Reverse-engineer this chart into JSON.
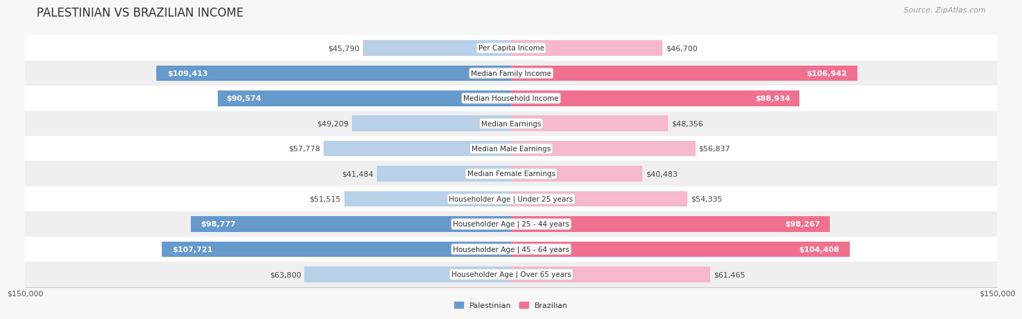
{
  "title": "PALESTINIAN VS BRAZILIAN INCOME",
  "source": "Source: ZipAtlas.com",
  "categories": [
    "Per Capita Income",
    "Median Family Income",
    "Median Household Income",
    "Median Earnings",
    "Median Male Earnings",
    "Median Female Earnings",
    "Householder Age | Under 25 years",
    "Householder Age | 25 - 44 years",
    "Householder Age | 45 - 64 years",
    "Householder Age | Over 65 years"
  ],
  "palestinian_values": [
    45790,
    109413,
    90574,
    49209,
    57778,
    41484,
    51515,
    98777,
    107721,
    63800
  ],
  "brazilian_values": [
    46700,
    106942,
    88934,
    48356,
    56837,
    40483,
    54335,
    98267,
    104408,
    61465
  ],
  "palestinian_labels": [
    "$45,790",
    "$109,413",
    "$90,574",
    "$49,209",
    "$57,778",
    "$41,484",
    "$51,515",
    "$98,777",
    "$107,721",
    "$63,800"
  ],
  "brazilian_labels": [
    "$46,700",
    "$106,942",
    "$88,934",
    "$48,356",
    "$56,837",
    "$40,483",
    "$54,335",
    "$98,267",
    "$104,408",
    "$61,465"
  ],
  "max_value": 150000,
  "palestinian_color_light": "#b8d0e8",
  "palestinian_color_dark": "#6699cc",
  "brazilian_color_light": "#f5b8cc",
  "brazilian_color_dark": "#f07090",
  "label_threshold": 80000,
  "background_color": "#f7f7f7",
  "row_bg_even": "#ffffff",
  "row_bg_odd": "#efefef",
  "bar_height": 0.62,
  "title_fontsize": 12,
  "source_fontsize": 8,
  "label_fontsize": 8,
  "category_fontsize": 7.5,
  "axis_label_fontsize": 8
}
